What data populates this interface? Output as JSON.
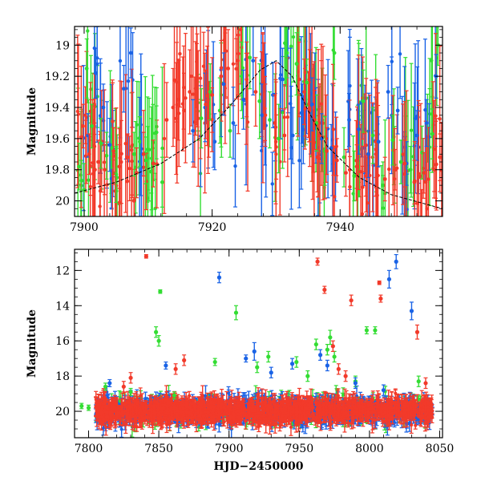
{
  "colors": {
    "green": "#33dd33",
    "blue": "#1a63e6",
    "red": "#f23a2a",
    "axis": "#000000",
    "model": "#000000"
  },
  "chart_data": [
    {
      "type": "scatter",
      "title": "",
      "xlabel": "",
      "ylabel": "Magnitude",
      "xlim": [
        7898.5,
        7956
      ],
      "ylim": [
        20.1,
        18.88
      ],
      "y_inverted": true,
      "x_ticks": [
        7900,
        7920,
        7940
      ],
      "y_ticks": [
        19,
        19.2,
        19.4,
        19.6,
        19.8,
        20
      ],
      "x_tick_labels": [
        "7900",
        "7920",
        "7940"
      ],
      "y_tick_labels": [
        "19",
        "19.2",
        "19.4",
        "19.6",
        "19.8",
        "20"
      ],
      "error_bars": true,
      "series": [
        {
          "color": "green",
          "x": [
            7899.2,
            7899.6,
            7900.0,
            7900.4,
            7901.2,
            7902.6,
            7903.5,
            7904.3,
            7905.0,
            7907.8,
            7908.7,
            7909.6,
            7910.5,
            7911.3,
            7912.2,
            7918.3,
            7919.7,
            7921.2,
            7922.8,
            7924.6,
            7925.9,
            7927.4,
            7929.0,
            7930.4,
            7931.7,
            7933.2,
            7934.8,
            7936.3,
            7937.6,
            7939.1,
            7940.6,
            7942.2,
            7943.6,
            7945.1,
            7946.7,
            7948.2,
            7949.5,
            7951.0,
            7952.8,
            7954.4,
            7955.3
          ],
          "y": [
            19.78,
            19.87,
            19.93,
            19.15,
            19.52,
            19.63,
            19.71,
            19.66,
            19.83,
            19.7,
            19.62,
            19.74,
            19.81,
            19.56,
            19.88,
            19.47,
            19.3,
            19.42,
            19.55,
            19.2,
            19.08,
            19.36,
            19.48,
            19.6,
            19.05,
            19.12,
            19.24,
            19.5,
            19.68,
            19.05,
            19.72,
            19.84,
            19.36,
            19.58,
            19.9,
            19.61,
            19.75,
            19.8,
            19.69,
            19.57,
            19.0
          ],
          "err": [
            0.15,
            0.13,
            0.17,
            0.19,
            0.14,
            0.16,
            0.15,
            0.13,
            0.18,
            0.14,
            0.16,
            0.15,
            0.14,
            0.17,
            0.16,
            0.19,
            0.18,
            0.21,
            0.17,
            0.22,
            0.2,
            0.24,
            0.18,
            0.22,
            0.16,
            0.2,
            0.15,
            0.18,
            0.22,
            0.17,
            0.19,
            0.16,
            0.2,
            0.18,
            0.15,
            0.16,
            0.14,
            0.15,
            0.17,
            0.16,
            0.13
          ]
        },
        {
          "color": "blue",
          "x": [
            7900.6,
            7901.8,
            7903.0,
            7904.0,
            7906.2,
            7907.3,
            7909.0,
            7917.0,
            7918.9,
            7920.4,
            7921.8,
            7923.3,
            7924.9,
            7926.4,
            7927.8,
            7929.5,
            7931.0,
            7932.6,
            7934.1,
            7935.6,
            7937.1,
            7938.6,
            7941.4,
            7942.9,
            7944.4,
            7946.0,
            7947.5,
            7949.0,
            7950.4,
            7952.0,
            7953.5,
            7955.0
          ],
          "y": [
            19.58,
            19.18,
            19.4,
            19.64,
            19.28,
            19.05,
            19.7,
            19.55,
            19.4,
            19.62,
            19.25,
            19.5,
            19.35,
            19.1,
            19.45,
            19.32,
            19.22,
            19.58,
            19.44,
            19.38,
            19.6,
            19.66,
            19.48,
            19.54,
            19.7,
            19.62,
            19.3,
            19.42,
            19.76,
            19.58,
            19.5,
            19.2
          ],
          "err": [
            0.14,
            0.16,
            0.15,
            0.17,
            0.15,
            0.16,
            0.14,
            0.2,
            0.22,
            0.18,
            0.2,
            0.23,
            0.19,
            0.22,
            0.2,
            0.21,
            0.2,
            0.18,
            0.19,
            0.17,
            0.16,
            0.15,
            0.17,
            0.16,
            0.15,
            0.16,
            0.17,
            0.15,
            0.14,
            0.16,
            0.15,
            0.14
          ]
        },
        {
          "color": "red",
          "x": [
            7899.8,
            7900.8,
            7901.6,
            7902.2,
            7903.2,
            7904.6,
            7905.5,
            7906.8,
            7908.2,
            7909.3,
            7910.8,
            7912.9,
            7913.9,
            7914.7,
            7915.6,
            7916.5,
            7917.6,
            7919.0,
            7920.0,
            7921.4,
            7922.5,
            7924.0,
            7925.4,
            7926.8,
            7928.3,
            7929.8,
            7931.3,
            7933.6,
            7934.4,
            7935.2,
            7936.0,
            7936.8,
            7937.9,
            7939.5,
            7940.9,
            7942.6,
            7944.0,
            7945.6,
            7947.0,
            7948.6,
            7950.1,
            7951.6,
            7953.1,
            7954.7,
            7955.6
          ],
          "y": [
            19.52,
            19.7,
            19.65,
            19.75,
            19.8,
            19.68,
            19.78,
            19.72,
            19.82,
            19.7,
            19.76,
            19.48,
            19.4,
            19.35,
            19.42,
            19.3,
            19.25,
            19.38,
            19.32,
            19.2,
            19.15,
            19.1,
            19.22,
            19.3,
            19.45,
            19.5,
            19.58,
            19.22,
            19.3,
            19.42,
            19.48,
            19.58,
            19.68,
            19.74,
            19.82,
            19.78,
            19.84,
            19.7,
            19.86,
            19.8,
            19.76,
            19.88,
            19.82,
            19.8,
            19.72
          ],
          "err": [
            0.14,
            0.13,
            0.15,
            0.14,
            0.16,
            0.15,
            0.14,
            0.15,
            0.16,
            0.14,
            0.15,
            0.24,
            0.25,
            0.26,
            0.24,
            0.27,
            0.26,
            0.22,
            0.24,
            0.23,
            0.25,
            0.22,
            0.24,
            0.22,
            0.2,
            0.18,
            0.17,
            0.24,
            0.21,
            0.2,
            0.19,
            0.17,
            0.15,
            0.14,
            0.15,
            0.14,
            0.13,
            0.15,
            0.14,
            0.13,
            0.15,
            0.14,
            0.13,
            0.14,
            0.15
          ]
        }
      ],
      "model_curve": {
        "x": [
          7898.5,
          7905,
          7912,
          7918,
          7923,
          7927.5,
          7930,
          7932.5,
          7935,
          7938,
          7943,
          7948,
          7956
        ],
        "y": [
          19.95,
          19.88,
          19.76,
          19.6,
          19.38,
          19.16,
          19.1,
          19.2,
          19.42,
          19.65,
          19.85,
          19.96,
          20.05
        ]
      }
    },
    {
      "type": "scatter",
      "title": "",
      "xlabel": "HJD−2450000",
      "ylabel": "Magnitude",
      "xlim": [
        7790,
        8052
      ],
      "ylim": [
        21.5,
        10.8
      ],
      "y_inverted": true,
      "x_ticks": [
        7800,
        7850,
        7900,
        7950,
        8000,
        8050
      ],
      "y_ticks": [
        12,
        14,
        16,
        18,
        20
      ],
      "x_tick_labels": [
        "7800",
        "7850",
        "7900",
        "7950",
        "8000",
        "8050"
      ],
      "y_tick_labels": [
        "12",
        "14",
        "16",
        "18",
        "20"
      ],
      "error_bars": true,
      "series": [
        {
          "color": "green",
          "x": [
            7795,
            7800,
            7812,
            7830,
            7848,
            7850,
            7851,
            7861,
            7890,
            7905,
            7920,
            7928,
            7948,
            7956,
            7962,
            7970,
            7972,
            7975,
            7990,
            7998,
            8004,
            8035
          ],
          "y": [
            19.7,
            19.8,
            18.6,
            18.9,
            15.5,
            16.0,
            13.2,
            19.1,
            17.2,
            14.4,
            17.5,
            16.9,
            17.2,
            18.0,
            16.2,
            16.5,
            15.8,
            16.9,
            18.3,
            15.4,
            15.4,
            18.3
          ],
          "err": [
            0.15,
            0.15,
            0.2,
            0.2,
            0.3,
            0.3,
            0.1,
            0.2,
            0.2,
            0.4,
            0.3,
            0.3,
            0.3,
            0.3,
            0.3,
            0.3,
            0.4,
            0.3,
            0.3,
            0.2,
            0.2,
            0.3
          ]
        },
        {
          "color": "blue",
          "x": [
            7815,
            7855,
            7893,
            7912,
            7918,
            7930,
            7945,
            7965,
            7970,
            7990,
            8010,
            8014,
            8019,
            8030
          ],
          "y": [
            18.4,
            17.4,
            12.4,
            17.0,
            16.6,
            17.8,
            17.3,
            16.8,
            17.4,
            18.4,
            18.8,
            12.5,
            11.5,
            14.3
          ],
          "err": [
            0.2,
            0.2,
            0.3,
            0.2,
            0.5,
            0.3,
            0.3,
            0.3,
            0.3,
            0.3,
            0.3,
            0.5,
            0.4,
            0.5
          ]
        },
        {
          "color": "red",
          "x": [
            7825,
            7830,
            7841,
            7862,
            7868,
            7963,
            7968,
            7974,
            7978,
            7983,
            7987,
            8007,
            8008,
            8034,
            8040
          ],
          "y": [
            18.6,
            18.1,
            11.2,
            17.6,
            17.1,
            11.5,
            13.1,
            16.3,
            17.6,
            18.0,
            13.7,
            12.7,
            13.6,
            15.5,
            18.4
          ],
          "err": [
            0.3,
            0.3,
            0.1,
            0.3,
            0.3,
            0.2,
            0.2,
            0.3,
            0.3,
            0.3,
            0.3,
            0.1,
            0.2,
            0.4,
            0.3
          ]
        }
      ],
      "baseline_band": {
        "x_range": [
          7805,
          8045
        ],
        "y_center": 19.95,
        "y_spread": 0.45
      }
    }
  ]
}
